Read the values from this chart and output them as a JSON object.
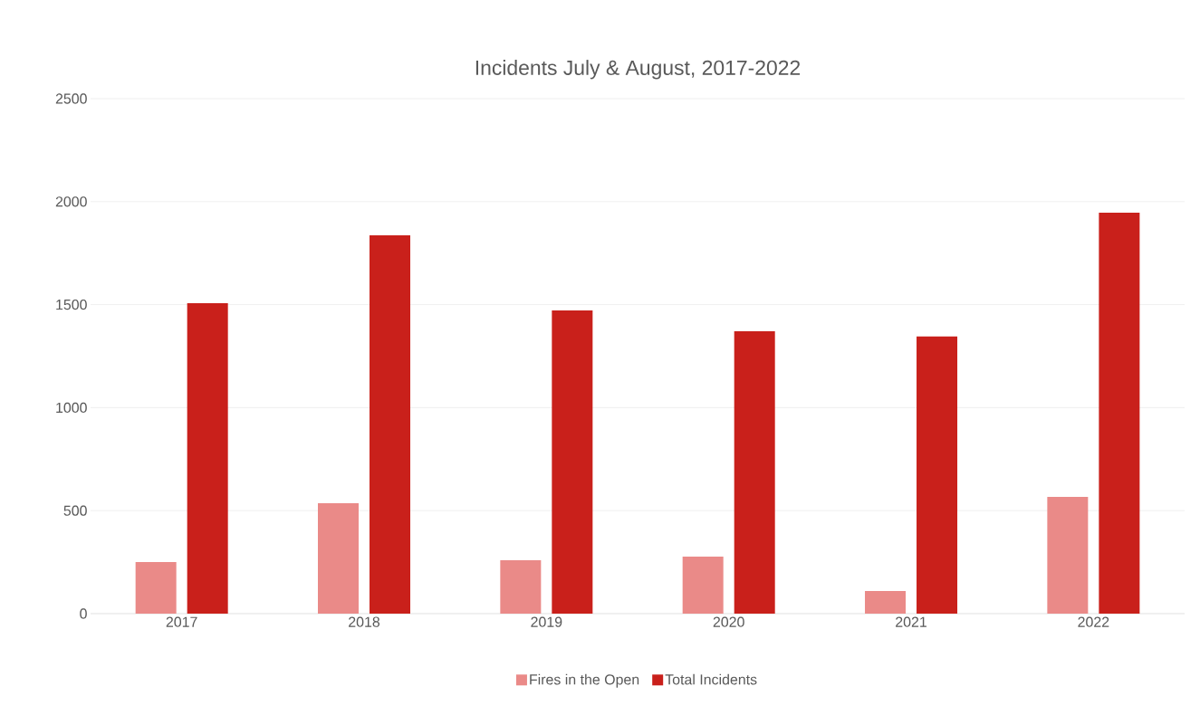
{
  "chart_data": {
    "type": "bar",
    "title": "Incidents July & August, 2017-2022",
    "categories": [
      "2017",
      "2018",
      "2019",
      "2020",
      "2021",
      "2022"
    ],
    "series": [
      {
        "name": "Fires in the Open",
        "color": "#ea8a88",
        "values": [
          250,
          536,
          259,
          277,
          110,
          567
        ]
      },
      {
        "name": "Total Incidents",
        "color": "#c9201b",
        "values": [
          1507,
          1837,
          1472,
          1371,
          1345,
          1946
        ]
      }
    ],
    "ylim": [
      0,
      2500
    ],
    "yticks": [
      0,
      500,
      1000,
      1500,
      2000,
      2500
    ],
    "grid": "y",
    "legend": "bottom"
  }
}
